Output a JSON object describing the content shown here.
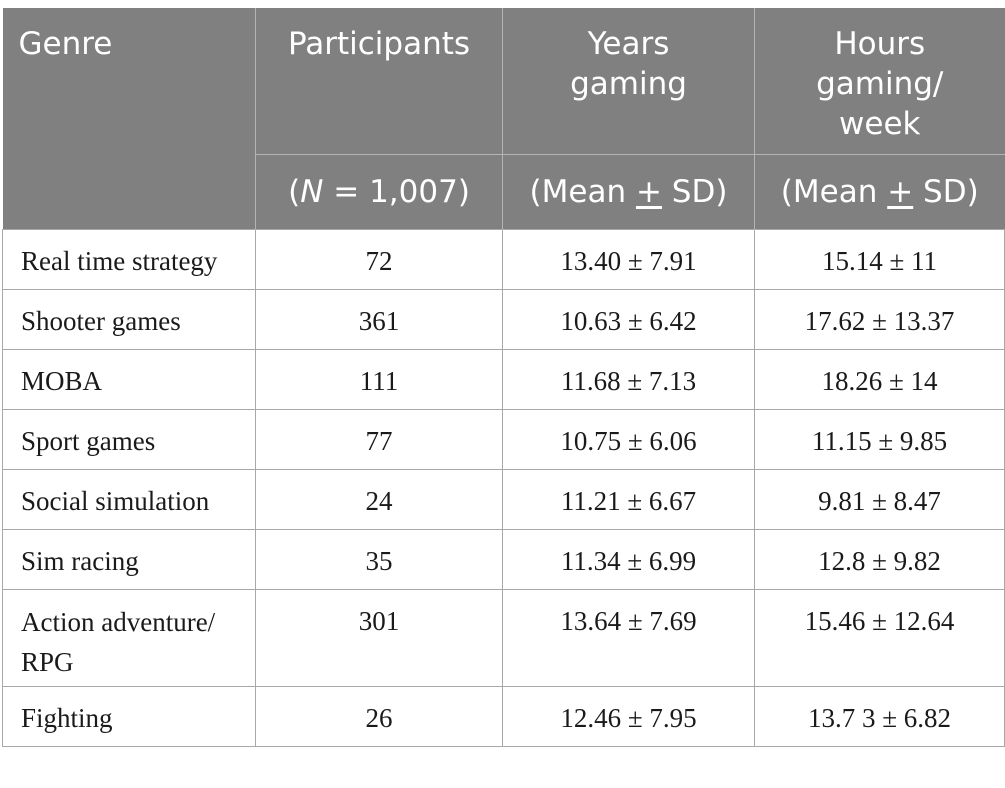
{
  "header": {
    "genre": "Genre",
    "participants": "Participants",
    "years_gaming": "Years gaming",
    "hours_line1": "Hours",
    "hours_line2": "gaming/",
    "hours_line3": "week",
    "n_prefix": "(",
    "n_letter": "N",
    "n_suffix": " = 1,007)",
    "mean_prefix": "(Mean ",
    "mean_pm": "+",
    "mean_suffix": " SD)"
  },
  "rows": [
    {
      "genre": "Real time strategy",
      "participants": "72",
      "years": "13.40 ± 7.91",
      "hours": "15.14 ± 11"
    },
    {
      "genre": "Shooter games",
      "participants": "361",
      "years": "10.63 ± 6.42",
      "hours": "17.62 ± 13.37"
    },
    {
      "genre": "MOBA",
      "participants": "111",
      "years": "11.68 ± 7.13",
      "hours": "18.26 ± 14"
    },
    {
      "genre": "Sport games",
      "participants": "77",
      "years": "10.75 ± 6.06",
      "hours": "11.15 ± 9.85"
    },
    {
      "genre": "Social simulation",
      "participants": "24",
      "years": "11.21 ± 6.67",
      "hours": "9.81 ± 8.47"
    },
    {
      "genre": "Sim racing",
      "participants": "35",
      "years": "11.34 ± 6.99",
      "hours": "12.8 ± 9.82"
    },
    {
      "genre_line1": "Action adventure/",
      "genre_line2": "RPG",
      "participants": "301",
      "years": "13.64 ± 7.69",
      "hours": "15.46 ± 12.64"
    },
    {
      "genre": "Fighting",
      "participants": "26",
      "years": "12.46 ± 7.95",
      "hours": "13.7 3 ± 6.82"
    }
  ]
}
